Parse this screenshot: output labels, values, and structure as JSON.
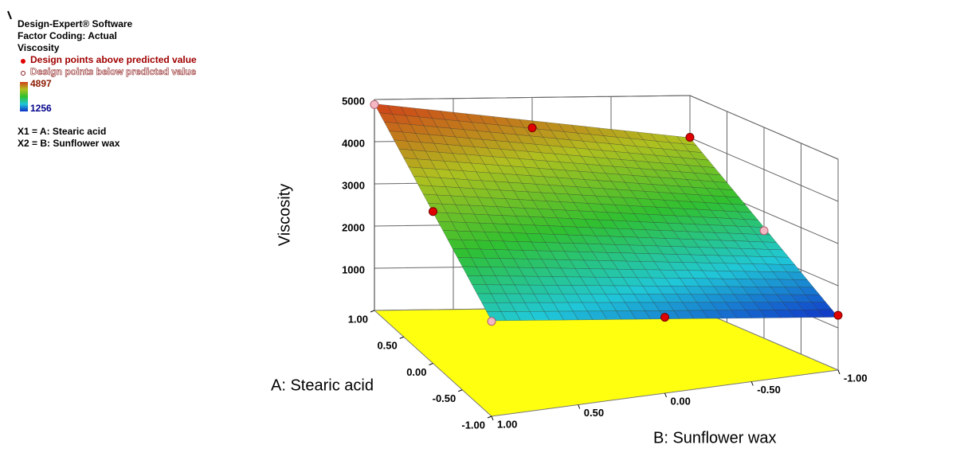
{
  "chart_data": {
    "type": "surface3d",
    "software": "Design-Expert® Software",
    "coding": "Factor Coding: Actual",
    "response": "Viscosity",
    "factors": [
      "X1 = A: Stearic acid",
      "X2 = B: Sunflower wax"
    ],
    "colorbar": {
      "max": 4897,
      "min": 1256,
      "colors": [
        "#1030c8",
        "#20c8d8",
        "#30c030",
        "#b0c020",
        "#d04018"
      ]
    },
    "zlabel": "Viscosity",
    "xlabel": "A: Stearic acid",
    "ylabel": "B: Sunflower wax",
    "x": [
      -1,
      -0.5,
      0,
      0.5,
      1
    ],
    "y": [
      -1,
      -0.5,
      0,
      0.5,
      1
    ],
    "z": [
      [
        1256,
        1508,
        1760,
        2012,
        2264
      ],
      [
        1942,
        2187,
        2432,
        2677,
        2922
      ],
      [
        2628,
        2866,
        3105,
        3343,
        3581
      ],
      [
        3314,
        3545,
        3777,
        4008,
        4239
      ],
      [
        4000,
        4224,
        4449,
        4673,
        4897
      ]
    ],
    "xlim": [
      -1,
      1
    ],
    "xticks": [
      {
        "value": -1,
        "label": "-1.00"
      },
      {
        "value": -0.5,
        "label": "-0.50"
      },
      {
        "value": 0,
        "label": "0.00"
      },
      {
        "value": 0.5,
        "label": "0.50"
      },
      {
        "value": 1,
        "label": "1.00"
      }
    ],
    "ylim": [
      -1,
      1
    ],
    "yticks": [
      {
        "value": -1,
        "label": "-1.00"
      },
      {
        "value": -0.5,
        "label": "-0.50"
      },
      {
        "value": 0,
        "label": "0.00"
      },
      {
        "value": 0.5,
        "label": "0.50"
      },
      {
        "value": 1,
        "label": "1.00"
      }
    ],
    "zlim": [
      0,
      5000
    ],
    "zticks": [
      1000,
      2000,
      3000,
      4000,
      5000
    ],
    "floor_color": "#ffff10",
    "series": [
      {
        "name": "Design points above predicted value",
        "color": "#e00000",
        "x": [
          1,
          1,
          0,
          -1,
          -1
        ],
        "y": [
          0,
          -1,
          1,
          0,
          -1
        ],
        "values": [
          4280,
          4010,
          3600,
          1800,
          1300
        ]
      },
      {
        "name": "Design points below predicted value",
        "color": "#f4b8c4",
        "x": [
          1,
          0,
          -1
        ],
        "y": [
          1,
          -1,
          1
        ],
        "values": [
          4880,
          2550,
          2250
        ]
      }
    ]
  }
}
